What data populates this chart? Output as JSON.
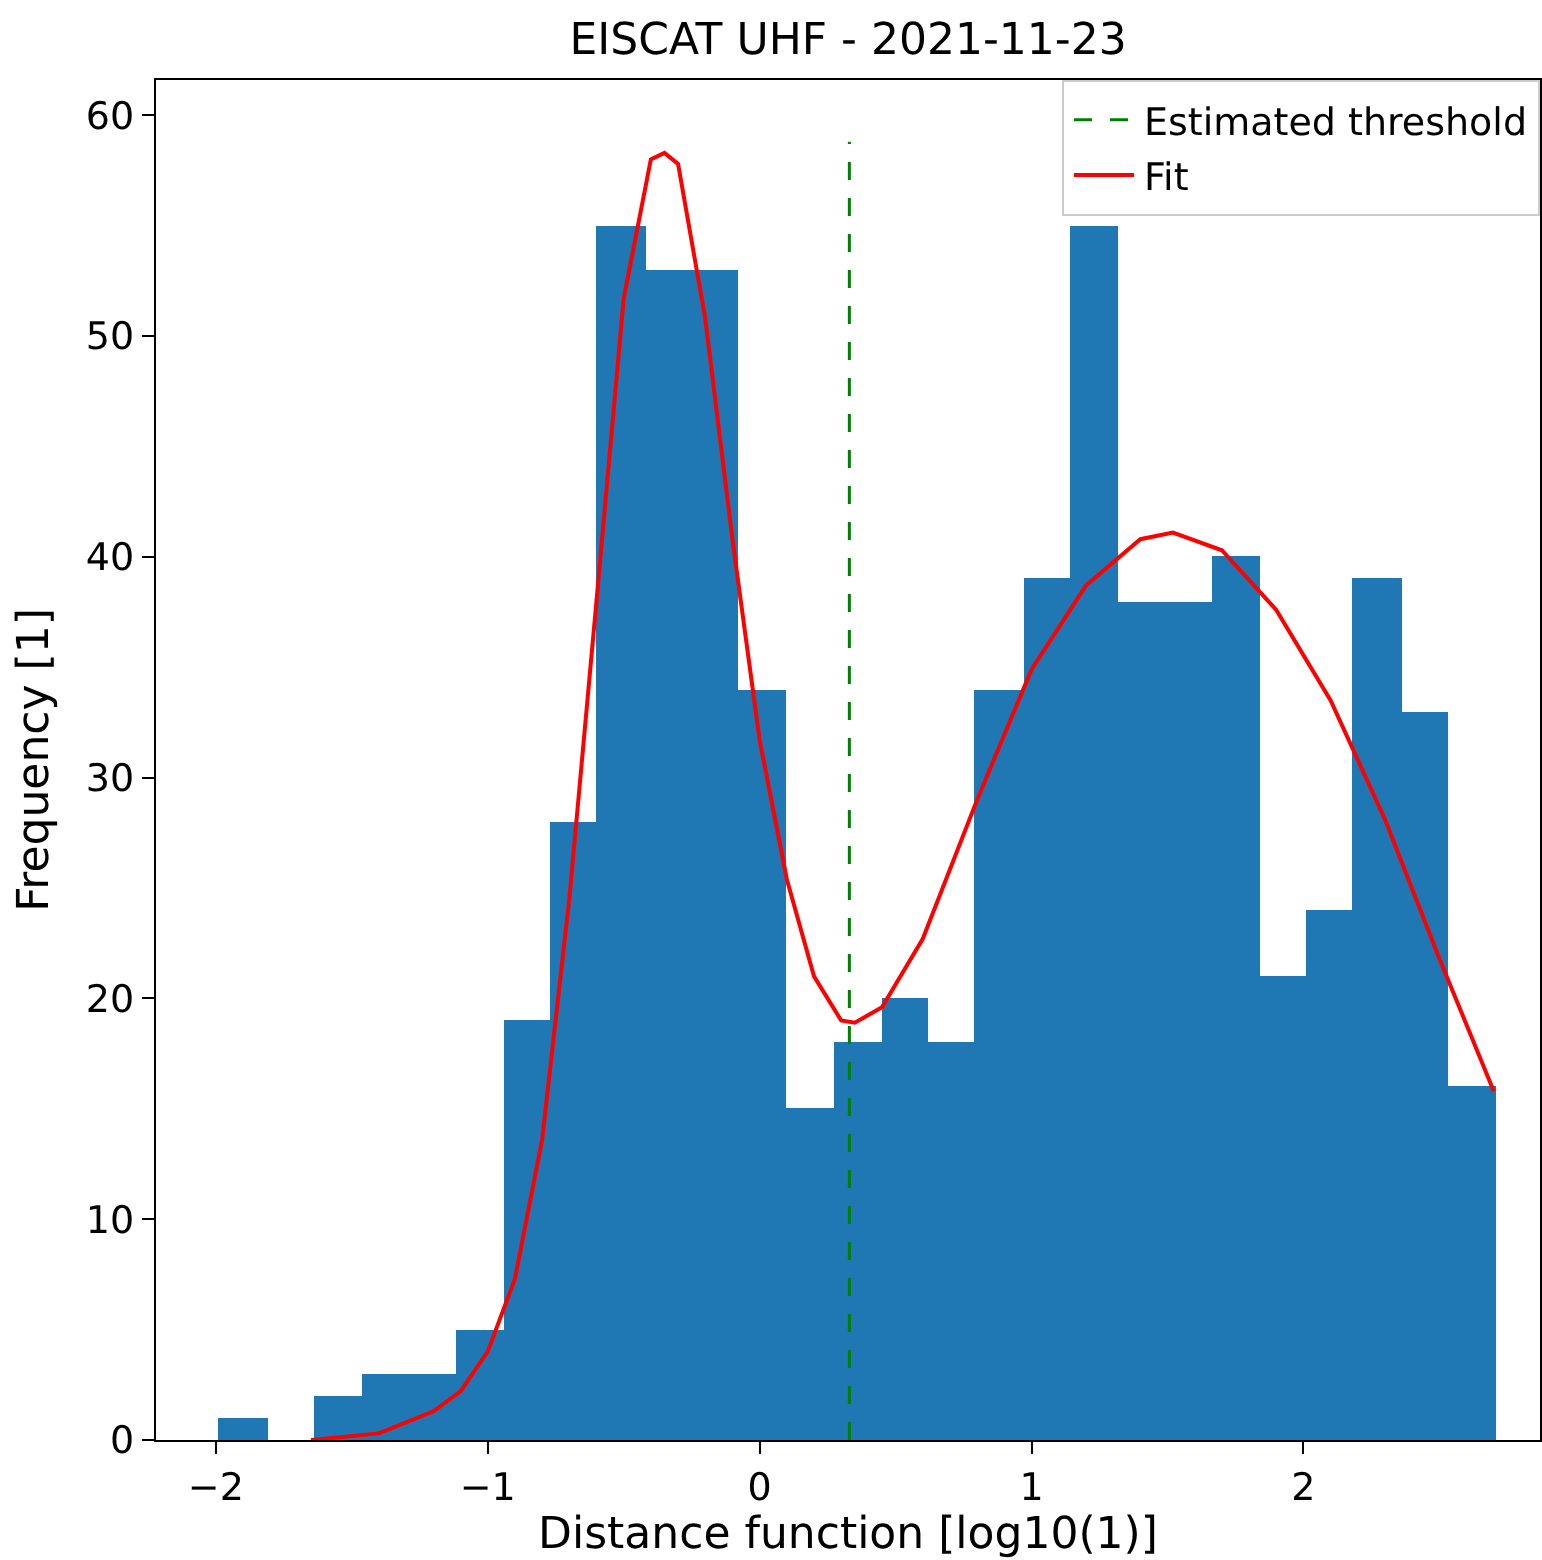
{
  "chart_data": {
    "type": "histogram",
    "title": "EISCAT UHF - 2021-11-23",
    "xlabel": "Distance function [log10(1)]",
    "ylabel": "Frequency [1]",
    "bins": [
      -1.99,
      -1.81,
      -1.64,
      -1.46,
      -1.29,
      -1.12,
      -0.94,
      -0.77,
      -0.6,
      -0.42,
      -0.25,
      -0.08,
      0.1,
      0.27,
      0.45,
      0.62,
      0.79,
      0.97,
      1.14,
      1.32,
      1.49,
      1.66,
      1.84,
      2.01,
      2.18,
      2.36,
      2.53,
      2.71
    ],
    "values": [
      1,
      0,
      2,
      3,
      3,
      5,
      19,
      28,
      55,
      53,
      53,
      34,
      15,
      18,
      20,
      18,
      34,
      39,
      55,
      38,
      38,
      40,
      21,
      24,
      39,
      33,
      16
    ],
    "color": "#1f77b4",
    "series": [
      {
        "name": "Estimated threshold",
        "type": "line",
        "color": "#008000",
        "line_style": "dashed",
        "x": [
          0.33,
          0.33
        ],
        "values": [
          0,
          58.8
        ]
      },
      {
        "name": "Fit",
        "type": "line",
        "color": "#ff0000",
        "x": [
          -1.65,
          -1.4,
          -1.2,
          -1.1,
          -1,
          -0.9,
          -0.8,
          -0.7,
          -0.6,
          -0.5,
          -0.4,
          -0.35,
          -0.3,
          -0.2,
          -0.1,
          0,
          0.1,
          0.2,
          0.3,
          0.35,
          0.45,
          0.6,
          0.8,
          1,
          1.2,
          1.4,
          1.52,
          1.7,
          1.9,
          2.1,
          2.3,
          2.5,
          2.7
        ],
        "values": [
          0,
          0.3,
          1.3,
          2.2,
          4,
          7.3,
          13.6,
          24.5,
          38,
          51.7,
          58,
          58.3,
          57.8,
          50.8,
          40.8,
          31.7,
          25.4,
          21,
          19,
          18.9,
          19.6,
          22.7,
          29,
          34.9,
          38.7,
          40.8,
          41.1,
          40.3,
          37.6,
          33.5,
          28.1,
          21.8,
          15.8
        ]
      }
    ],
    "xlim": [
      -2.22,
      2.87
    ],
    "xticks": [
      -2,
      -1,
      0,
      1,
      2
    ],
    "ylim": [
      0,
      61.6
    ],
    "yticks": [
      0,
      10,
      20,
      30,
      40,
      50,
      60
    ],
    "grid": false,
    "legend": "top right",
    "marker": "none"
  }
}
